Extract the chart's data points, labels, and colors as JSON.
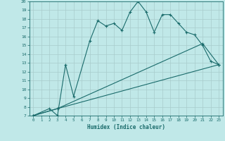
{
  "xlabel": "Humidex (Indice chaleur)",
  "background_color": "#c0e8e8",
  "line_color": "#1a6b6b",
  "grid_color": "#a8cccc",
  "xlim": [
    -0.5,
    23.5
  ],
  "ylim": [
    7,
    20
  ],
  "xticks": [
    0,
    1,
    2,
    3,
    4,
    5,
    6,
    7,
    8,
    9,
    10,
    11,
    12,
    13,
    14,
    15,
    16,
    17,
    18,
    19,
    20,
    21,
    22,
    23
  ],
  "yticks": [
    7,
    8,
    9,
    10,
    11,
    12,
    13,
    14,
    15,
    16,
    17,
    18,
    19,
    20
  ],
  "line1_x": [
    0,
    2,
    3,
    4,
    5,
    7,
    8,
    9,
    10,
    11,
    12,
    13,
    14,
    15,
    16,
    17,
    18,
    19,
    20,
    21,
    22,
    23
  ],
  "line1_y": [
    7,
    7.8,
    7,
    12.8,
    9.2,
    15.5,
    17.8,
    17.2,
    17.5,
    16.7,
    18.8,
    20,
    18.8,
    16.5,
    18.5,
    18.5,
    17.5,
    16.5,
    16.2,
    15,
    13.2,
    12.8
  ],
  "line2_x": [
    0,
    3,
    21,
    23
  ],
  "line2_y": [
    7,
    7.8,
    15.2,
    12.8
  ],
  "line3_x": [
    0,
    3,
    23
  ],
  "line3_y": [
    7,
    7.8,
    12.8
  ],
  "marker": "+"
}
